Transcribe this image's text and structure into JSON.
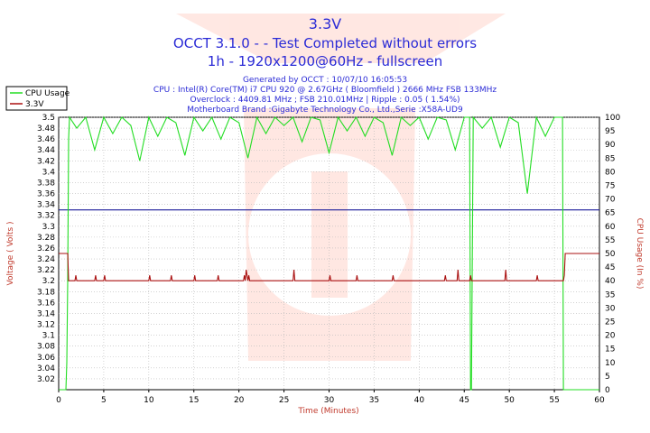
{
  "chart_data": {
    "type": "line",
    "title": "3.3V",
    "subtitle1": "OCCT 3.1.0 -  - Test Completed without errors",
    "subtitle2": "1h - 1920x1200@60Hz - fullscreen",
    "info_lines": [
      "Generated by OCCT : 10/07/10 16:05:53",
      "CPU : Intel(R) Core(TM) i7 CPU 920 @ 2.67GHz ( Bloomfield ) 2666 MHz FSB 133MHz",
      "Overclock : 4409.81 MHz ; FSB 210.01MHz | Ripple : 0.05 ( 1.54%)",
      "Motherboard Brand :Gigabyte Technology Co., Ltd.,Serie :X58A-UD9"
    ],
    "xlabel": "Time (Minutes)",
    "ylabel_left": "Voltage ( Volts )",
    "ylabel_right": "CPU Usage  (In %)",
    "xlim": [
      0,
      60
    ],
    "ylim_left": [
      3.0,
      3.5
    ],
    "ylim_right": [
      0,
      100
    ],
    "x_ticks": [
      0,
      5,
      10,
      15,
      20,
      25,
      30,
      35,
      40,
      45,
      50,
      55,
      60
    ],
    "y_left_ticks": [
      "3.02",
      "3.04",
      "3.06",
      "3.08",
      "3.1",
      "3.12",
      "3.14",
      "3.16",
      "3.18",
      "3.2",
      "3.22",
      "3.24",
      "3.26",
      "3.28",
      "3.3",
      "3.32",
      "3.34",
      "3.36",
      "3.38",
      "3.4",
      "3.42",
      "3.44",
      "3.46",
      "3.48",
      "3.5"
    ],
    "y_right_ticks": [
      "0",
      "5",
      "10",
      "15",
      "20",
      "25",
      "30",
      "35",
      "40",
      "45",
      "50",
      "55",
      "60",
      "65",
      "70",
      "75",
      "80",
      "85",
      "90",
      "95",
      "100"
    ],
    "grid": true,
    "legend_position": "top-left",
    "series": [
      {
        "name": "CPU Usage",
        "axis": "right",
        "color": "#22dd22",
        "x": [
          0,
          0.8,
          0.9,
          1.0,
          1.1,
          1.2,
          2.0,
          3.0,
          4.0,
          5.0,
          6.0,
          7.0,
          8.0,
          9.0,
          10.0,
          11.0,
          12.0,
          13.0,
          14.0,
          15.0,
          16.0,
          17.0,
          18.0,
          19.0,
          20.0,
          21.0,
          22.0,
          23.0,
          24.0,
          25.0,
          26.0,
          27.0,
          28.0,
          29.0,
          30.0,
          31.0,
          32.0,
          33.0,
          34.0,
          35.0,
          36.0,
          37.0,
          38.0,
          39.0,
          40.0,
          41.0,
          42.0,
          43.0,
          44.0,
          45.0,
          45.6,
          45.7,
          45.8,
          46.0,
          47.0,
          48.0,
          49.0,
          50.0,
          51.0,
          52.0,
          53.0,
          54.0,
          55.0,
          55.9,
          56.0,
          56.1,
          56.3,
          57.0,
          58.0,
          59.0,
          60.0
        ],
        "values": [
          0,
          0,
          10,
          40,
          92,
          100,
          96,
          100,
          88,
          100,
          94,
          100,
          97,
          84,
          100,
          93,
          100,
          98,
          86,
          100,
          95,
          100,
          92,
          100,
          98,
          85,
          100,
          94,
          100,
          97,
          100,
          91,
          100,
          99,
          87,
          100,
          95,
          100,
          93,
          100,
          98,
          86,
          100,
          97,
          100,
          92,
          100,
          99,
          88,
          100,
          100,
          0,
          0,
          100,
          96,
          100,
          89,
          100,
          98,
          72,
          100,
          93,
          100,
          100,
          0,
          0,
          0,
          0,
          0,
          0,
          0
        ]
      },
      {
        "name": "3.3V",
        "axis": "left",
        "color": "#aa1111",
        "x": [
          0,
          1.0,
          1.1,
          1.8,
          1.9,
          2.0,
          2.1,
          4.0,
          4.1,
          4.2,
          5.0,
          5.1,
          5.2,
          10.0,
          10.1,
          10.2,
          12.4,
          12.5,
          12.6,
          13.0,
          15.0,
          15.1,
          15.2,
          17.6,
          17.7,
          17.8,
          20.5,
          20.6,
          20.7,
          20.8,
          21.0,
          21.1,
          21.2,
          26.0,
          26.1,
          26.2,
          30.0,
          30.1,
          30.2,
          33.0,
          33.1,
          33.2,
          37.0,
          37.1,
          37.2,
          42.8,
          42.9,
          43.0,
          44.2,
          44.3,
          44.4,
          45.6,
          45.7,
          45.8,
          49.5,
          49.6,
          49.7,
          53.0,
          53.1,
          53.2,
          56.0,
          56.1,
          56.2,
          56.3,
          60.0
        ],
        "values": [
          3.25,
          3.25,
          3.2,
          3.2,
          3.21,
          3.2,
          3.2,
          3.2,
          3.21,
          3.2,
          3.2,
          3.21,
          3.2,
          3.2,
          3.21,
          3.2,
          3.2,
          3.21,
          3.2,
          3.2,
          3.2,
          3.21,
          3.2,
          3.2,
          3.21,
          3.2,
          3.2,
          3.21,
          3.2,
          3.22,
          3.2,
          3.21,
          3.2,
          3.2,
          3.22,
          3.2,
          3.2,
          3.21,
          3.2,
          3.2,
          3.21,
          3.2,
          3.2,
          3.21,
          3.2,
          3.2,
          3.21,
          3.2,
          3.2,
          3.22,
          3.2,
          3.2,
          3.21,
          3.2,
          3.2,
          3.22,
          3.2,
          3.2,
          3.21,
          3.2,
          3.2,
          3.21,
          3.25,
          3.25,
          3.25
        ]
      }
    ],
    "reference_line": {
      "value": 3.33,
      "axis": "left",
      "color": "#1a1a9a"
    }
  }
}
